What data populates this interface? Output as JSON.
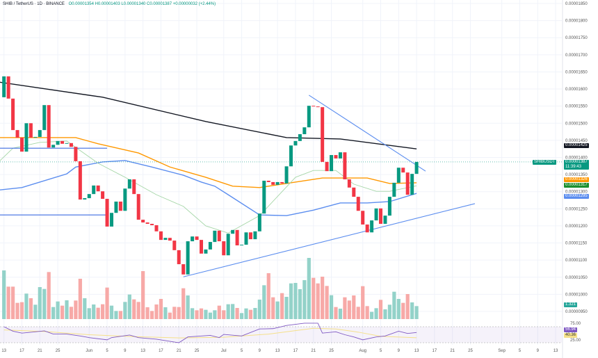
{
  "header": {
    "symbol": "SHIB / TetherUS · 1D · BINANCE",
    "ohlc": "O0.00001354  H0.00001403  L0.00001340  C0.00001387  +0.00000032 (+2.44%)"
  },
  "chart_data": {
    "type": "candlestick",
    "start_date": "2024-05-13",
    "first_open": 1.576e-05,
    "closes": [
      1.637e-05,
      1.572e-05,
      1.48e-05,
      1.458e-05,
      1.417e-05,
      1.5e-05,
      1.458e-05,
      1.46e-05,
      1.48e-05,
      1.553e-05,
      1.429e-05,
      1.437e-05,
      1.448e-05,
      1.44e-05,
      1.442e-05,
      1.431e-05,
      1.389e-05,
      1.277e-05,
      1.281e-05,
      1.293e-05,
      1.318e-05,
      1.301e-05,
      1.279e-05,
      1.198e-05,
      1.238e-05,
      1.271e-05,
      1.244e-05,
      1.309e-05,
      1.336e-05,
      1.293e-05,
      1.218e-05,
      1.21e-05,
      1.206e-05,
      1.202e-05,
      1.184e-05,
      1.159e-05,
      1.165e-05,
      1.157e-05,
      1.129e-05,
      1.088e-05,
      1.058e-05,
      1.155e-05,
      1.169e-05,
      1.159e-05,
      1.119e-05,
      1.131e-05,
      1.153e-05,
      1.186e-05,
      1.155e-05,
      1.114e-05,
      1.177e-05,
      1.188e-05,
      1.143e-05,
      1.145e-05,
      1.181e-05,
      1.161e-05,
      1.184e-05,
      1.236e-05,
      1.332e-05,
      1.328e-05,
      1.32e-05,
      1.328e-05,
      1.324e-05,
      1.374e-05,
      1.435e-05,
      1.448e-05,
      1.468e-05,
      1.488e-05,
      1.551e-05,
      1.549e-05,
      1.547e-05,
      1.387e-05,
      1.36e-05,
      1.407e-05,
      1.397e-05,
      1.415e-05,
      1.336e-05,
      1.312e-05,
      1.285e-05,
      1.244e-05,
      1.204e-05,
      1.181e-05,
      1.216e-05,
      1.251e-05,
      1.206e-05,
      1.23e-05,
      1.285e-05,
      1.326e-05,
      1.37e-05,
      1.356e-05,
      1.291e-05,
      1.352e-05,
      1.387e-05
    ],
    "volume_relative": [
      210,
      140,
      140,
      70,
      73,
      110,
      90,
      62,
      138,
      130,
      203,
      52,
      76,
      58,
      81,
      53,
      80,
      174,
      90,
      47,
      63,
      49,
      64,
      136,
      58,
      35,
      35,
      74,
      106,
      85,
      74,
      207,
      51,
      35,
      63,
      87,
      51,
      28,
      53,
      52,
      133,
      102,
      47,
      38,
      46,
      40,
      28,
      38,
      58,
      38,
      64,
      65,
      48,
      26,
      46,
      40,
      48,
      84,
      146,
      198,
      94,
      76,
      112,
      96,
      154,
      156,
      129,
      168,
      264,
      178,
      154,
      183,
      143,
      103,
      52,
      45,
      94,
      80,
      102,
      53,
      142,
      56,
      31,
      47,
      83,
      42,
      62,
      118,
      87,
      70,
      108,
      72,
      56
    ],
    "moving_averages": [
      {
        "color": "#131722",
        "points": [
          [
            "2024-05-12",
            1.62e-05
          ],
          [
            "2024-06-04",
            1.576e-05
          ],
          [
            "2024-06-27",
            1.505e-05
          ],
          [
            "2024-07-15",
            1.458e-05
          ],
          [
            "2024-07-27",
            1.454e-05
          ],
          [
            "2024-08-13",
            1.425e-05
          ]
        ]
      },
      {
        "color": "#ff9800",
        "points": [
          [
            "2024-05-12",
            1.458e-05
          ],
          [
            "2024-05-29",
            1.458e-05
          ],
          [
            "2024-06-03",
            1.44e-05
          ],
          [
            "2024-06-12",
            1.413e-05
          ],
          [
            "2024-06-19",
            1.372e-05
          ],
          [
            "2024-06-27",
            1.342e-05
          ],
          [
            "2024-07-03",
            1.316e-05
          ],
          [
            "2024-07-09",
            1.312e-05
          ],
          [
            "2024-07-17",
            1.328e-05
          ],
          [
            "2024-07-23",
            1.34e-05
          ],
          [
            "2024-08-02",
            1.34e-05
          ],
          [
            "2024-08-07",
            1.324e-05
          ],
          [
            "2024-08-13",
            1.326e-05
          ]
        ]
      },
      {
        "color": "#5b8def",
        "points": [
          [
            "2024-05-12",
            1.305e-05
          ],
          [
            "2024-05-17",
            1.312e-05
          ],
          [
            "2024-05-27",
            1.352e-05
          ],
          [
            "2024-05-29",
            1.372e-05
          ],
          [
            "2024-06-04",
            1.387e-05
          ],
          [
            "2024-06-09",
            1.391e-05
          ],
          [
            "2024-06-15",
            1.372e-05
          ],
          [
            "2024-06-22",
            1.348e-05
          ],
          [
            "2024-06-26",
            1.328e-05
          ],
          [
            "2024-06-29",
            1.316e-05
          ],
          [
            "2024-07-02",
            1.291e-05
          ],
          [
            "2024-07-09",
            1.232e-05
          ],
          [
            "2024-07-15",
            1.23e-05
          ],
          [
            "2024-07-21",
            1.246e-05
          ],
          [
            "2024-07-27",
            1.267e-05
          ],
          [
            "2024-08-02",
            1.267e-05
          ],
          [
            "2024-08-07",
            1.271e-05
          ],
          [
            "2024-08-13",
            1.295e-05
          ]
        ]
      },
      {
        "color": "#a5d6a7",
        "points": [
          [
            "2024-05-12",
            1.389e-05
          ],
          [
            "2024-05-15",
            1.427e-05
          ],
          [
            "2024-05-21",
            1.444e-05
          ],
          [
            "2024-05-27",
            1.448e-05
          ],
          [
            "2024-06-03",
            1.383e-05
          ],
          [
            "2024-06-09",
            1.342e-05
          ],
          [
            "2024-06-16",
            1.291e-05
          ],
          [
            "2024-06-22",
            1.257e-05
          ],
          [
            "2024-06-27",
            1.2e-05
          ],
          [
            "2024-07-02",
            1.179e-05
          ],
          [
            "2024-07-09",
            1.23e-05
          ],
          [
            "2024-07-17",
            1.342e-05
          ],
          [
            "2024-07-21",
            1.362e-05
          ],
          [
            "2024-07-26",
            1.362e-05
          ],
          [
            "2024-07-30",
            1.322e-05
          ],
          [
            "2024-08-04",
            1.301e-05
          ],
          [
            "2024-08-07",
            1.301e-05
          ],
          [
            "2024-08-13",
            1.317e-05
          ]
        ]
      }
    ],
    "trendlines": [
      {
        "color": "#5b8def",
        "from": [
          "2024-07-20",
          1.582e-05
        ],
        "to": [
          "2024-08-15",
          1.36e-05
        ]
      },
      {
        "color": "#5b8def",
        "from": [
          "2024-06-22",
          1.051e-05
        ],
        "to": [
          "2024-08-26",
          1.265e-05
        ]
      },
      {
        "color": "#3d6be0",
        "from": [
          "2024-05-12",
          1.427e-05
        ],
        "to": [
          "2024-06-05",
          1.427e-05
        ]
      },
      {
        "color": "#3d6be0",
        "from": [
          "2024-05-12",
          1.232e-05
        ],
        "to": [
          "2024-06-05",
          1.232e-05
        ]
      }
    ],
    "rsi": [
      [
        "2024-05-13",
        75
      ],
      [
        "2024-05-15",
        61
      ],
      [
        "2024-05-17",
        55
      ],
      [
        "2024-05-20",
        59
      ],
      [
        "2024-05-22",
        62
      ],
      [
        "2024-05-24",
        52
      ],
      [
        "2024-05-27",
        52
      ],
      [
        "2024-05-30",
        46
      ],
      [
        "2024-06-01",
        41
      ],
      [
        "2024-06-05",
        34
      ],
      [
        "2024-06-06",
        41
      ],
      [
        "2024-06-10",
        49
      ],
      [
        "2024-06-12",
        41
      ],
      [
        "2024-06-16",
        36
      ],
      [
        "2024-06-21",
        25
      ],
      [
        "2024-06-23",
        43
      ],
      [
        "2024-06-28",
        48
      ],
      [
        "2024-06-30",
        41
      ],
      [
        "2024-07-01",
        51
      ],
      [
        "2024-07-05",
        46
      ],
      [
        "2024-07-09",
        68
      ],
      [
        "2024-07-12",
        69
      ],
      [
        "2024-07-15",
        79
      ],
      [
        "2024-07-19",
        86
      ],
      [
        "2024-07-22",
        86
      ],
      [
        "2024-07-23",
        55
      ],
      [
        "2024-07-26",
        59
      ],
      [
        "2024-07-28",
        50
      ],
      [
        "2024-07-30",
        43
      ],
      [
        "2024-08-01",
        34
      ],
      [
        "2024-08-04",
        43
      ],
      [
        "2024-08-06",
        46
      ],
      [
        "2024-08-09",
        61
      ],
      [
        "2024-08-11",
        54
      ],
      [
        "2024-08-13",
        56.94
      ]
    ],
    "rsi_ma": [
      [
        "2024-05-13",
        65
      ],
      [
        "2024-05-22",
        60
      ],
      [
        "2024-06-01",
        50
      ],
      [
        "2024-06-11",
        44
      ],
      [
        "2024-06-21",
        40
      ],
      [
        "2024-07-01",
        42
      ],
      [
        "2024-07-11",
        52
      ],
      [
        "2024-07-21",
        70
      ],
      [
        "2024-07-26",
        68
      ],
      [
        "2024-07-31",
        58
      ],
      [
        "2024-08-05",
        45
      ],
      [
        "2024-08-13",
        40.36
      ]
    ],
    "rsi_levels": [
      75,
      25
    ],
    "price_ticks": [
      "0.00001850",
      "0.00001800",
      "0.00001750",
      "0.00001700",
      "0.00001650",
      "0.00001600",
      "0.00001550",
      "0.00001500",
      "0.00001450",
      "0.00001400",
      "0.00001350",
      "0.00001300",
      "0.00001250",
      "0.00001200",
      "0.00001150",
      "0.00001100",
      "0.00001050",
      "0.00001000",
      "0.00000950"
    ],
    "x_ticks": [
      [
        "2024-05-13",
        "13"
      ],
      [
        "2024-05-17",
        "17"
      ],
      [
        "2024-05-21",
        "21"
      ],
      [
        "2024-05-25",
        "25"
      ],
      [
        "2024-06-01",
        "Jun"
      ],
      [
        "2024-06-05",
        "5"
      ],
      [
        "2024-06-09",
        "9"
      ],
      [
        "2024-06-13",
        "13"
      ],
      [
        "2024-06-17",
        "17"
      ],
      [
        "2024-06-21",
        "21"
      ],
      [
        "2024-06-25",
        "25"
      ],
      [
        "2024-07-01",
        "Jul"
      ],
      [
        "2024-07-05",
        "5"
      ],
      [
        "2024-07-09",
        "9"
      ],
      [
        "2024-07-13",
        "13"
      ],
      [
        "2024-07-17",
        "17"
      ],
      [
        "2024-07-21",
        "21"
      ],
      [
        "2024-07-25",
        "25"
      ],
      [
        "2024-08-01",
        "Aug"
      ],
      [
        "2024-08-05",
        "5"
      ],
      [
        "2024-08-09",
        "9"
      ],
      [
        "2024-08-13",
        "13"
      ],
      [
        "2024-08-17",
        "17"
      ],
      [
        "2024-08-21",
        "21"
      ],
      [
        "2024-08-25",
        "25"
      ],
      [
        "2024-09-01",
        "Sep"
      ],
      [
        "2024-09-05",
        "5"
      ],
      [
        "2024-09-09",
        "9"
      ],
      [
        "2024-09-13",
        "13"
      ]
    ],
    "colors": {
      "up": "#089981",
      "down": "#f23645",
      "vol_up": "#93d2c9",
      "vol_down": "#f7a9a7",
      "rsi": "#7e57c2",
      "rsi_ma": "#f5e08a"
    }
  },
  "tags": {
    "ma200": "0.00001425",
    "symbol": "SHIBUSDT",
    "last_price": "0.00001387",
    "countdown": "11:39:43",
    "ma100": "0.00001326",
    "ma20": "0.00001317",
    "ma50": "0.00001295",
    "volume": "1.321",
    "rsi_upper": "75.00",
    "rsi": "56.94",
    "rsi_ma": "40.36",
    "rsi_lower": "25.00"
  }
}
